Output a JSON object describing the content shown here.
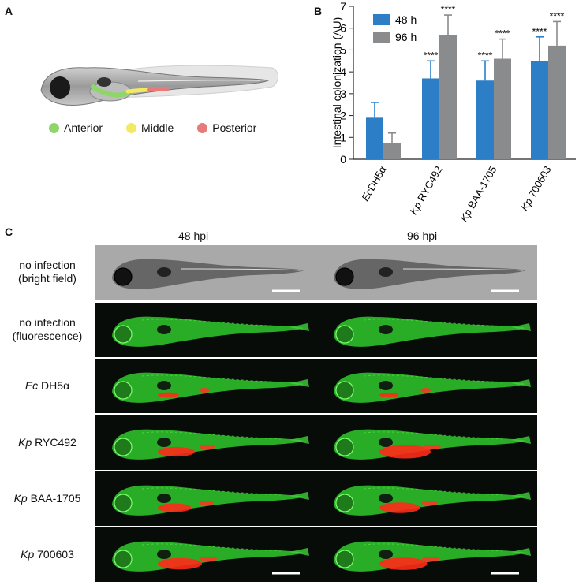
{
  "panels": {
    "a": "A",
    "b": "B",
    "c": "C"
  },
  "panel_a": {
    "legend": [
      {
        "label": "Anterior",
        "color": "#8fd66a"
      },
      {
        "label": "Middle",
        "color": "#f2ea60"
      },
      {
        "label": "Posterior",
        "color": "#e87a7a"
      }
    ]
  },
  "chart_data": {
    "type": "bar",
    "categories": [
      {
        "italic": "Ec",
        "rest": "DH5α"
      },
      {
        "italic": "Kp",
        "rest": " RYC492"
      },
      {
        "italic": "Kp",
        "rest": " BAA-1705"
      },
      {
        "italic": "Kp",
        "rest": " 700603"
      }
    ],
    "series": [
      {
        "name": "48 h",
        "color": "#2c7fc7",
        "values": [
          1.9,
          3.7,
          3.6,
          4.5
        ],
        "errors": [
          0.7,
          0.8,
          0.9,
          1.1
        ],
        "annotations": [
          "",
          "****",
          "****",
          "****"
        ]
      },
      {
        "name": "96 h",
        "color": "#8a8b8d",
        "values": [
          0.75,
          5.7,
          4.6,
          5.2
        ],
        "errors": [
          0.45,
          0.9,
          0.9,
          1.1
        ],
        "annotations": [
          "",
          "****",
          "****",
          "****"
        ]
      }
    ],
    "ylabel": "Intestinal colonization (AU)",
    "ylim": [
      0,
      7
    ],
    "yticks": [
      "0",
      "1",
      "2",
      "3",
      "4",
      "5",
      "6",
      "7"
    ],
    "legend_position": "top-left"
  },
  "panel_c": {
    "columns": [
      "48 hpi",
      "96 hpi"
    ],
    "rows": [
      {
        "line1": "no infection",
        "line2": "(bright field)",
        "italic": "",
        "rest": ""
      },
      {
        "line1": "no infection",
        "line2": "(fluorescence)",
        "italic": "",
        "rest": ""
      },
      {
        "line1": "",
        "line2": "",
        "italic": "Ec",
        "rest": " DH5α"
      },
      {
        "line1": "",
        "line2": "",
        "italic": "Kp",
        "rest": " RYC492"
      },
      {
        "line1": "",
        "line2": "",
        "italic": "Kp",
        "rest": " BAA-1705"
      },
      {
        "line1": "",
        "line2": "",
        "italic": "Kp",
        "rest": " 700603"
      }
    ],
    "red_level": [
      [
        0,
        0
      ],
      [
        0,
        0
      ],
      [
        0.15,
        0.1
      ],
      [
        0.6,
        1.0
      ],
      [
        0.5,
        0.7
      ],
      [
        0.8,
        0.9
      ]
    ]
  }
}
